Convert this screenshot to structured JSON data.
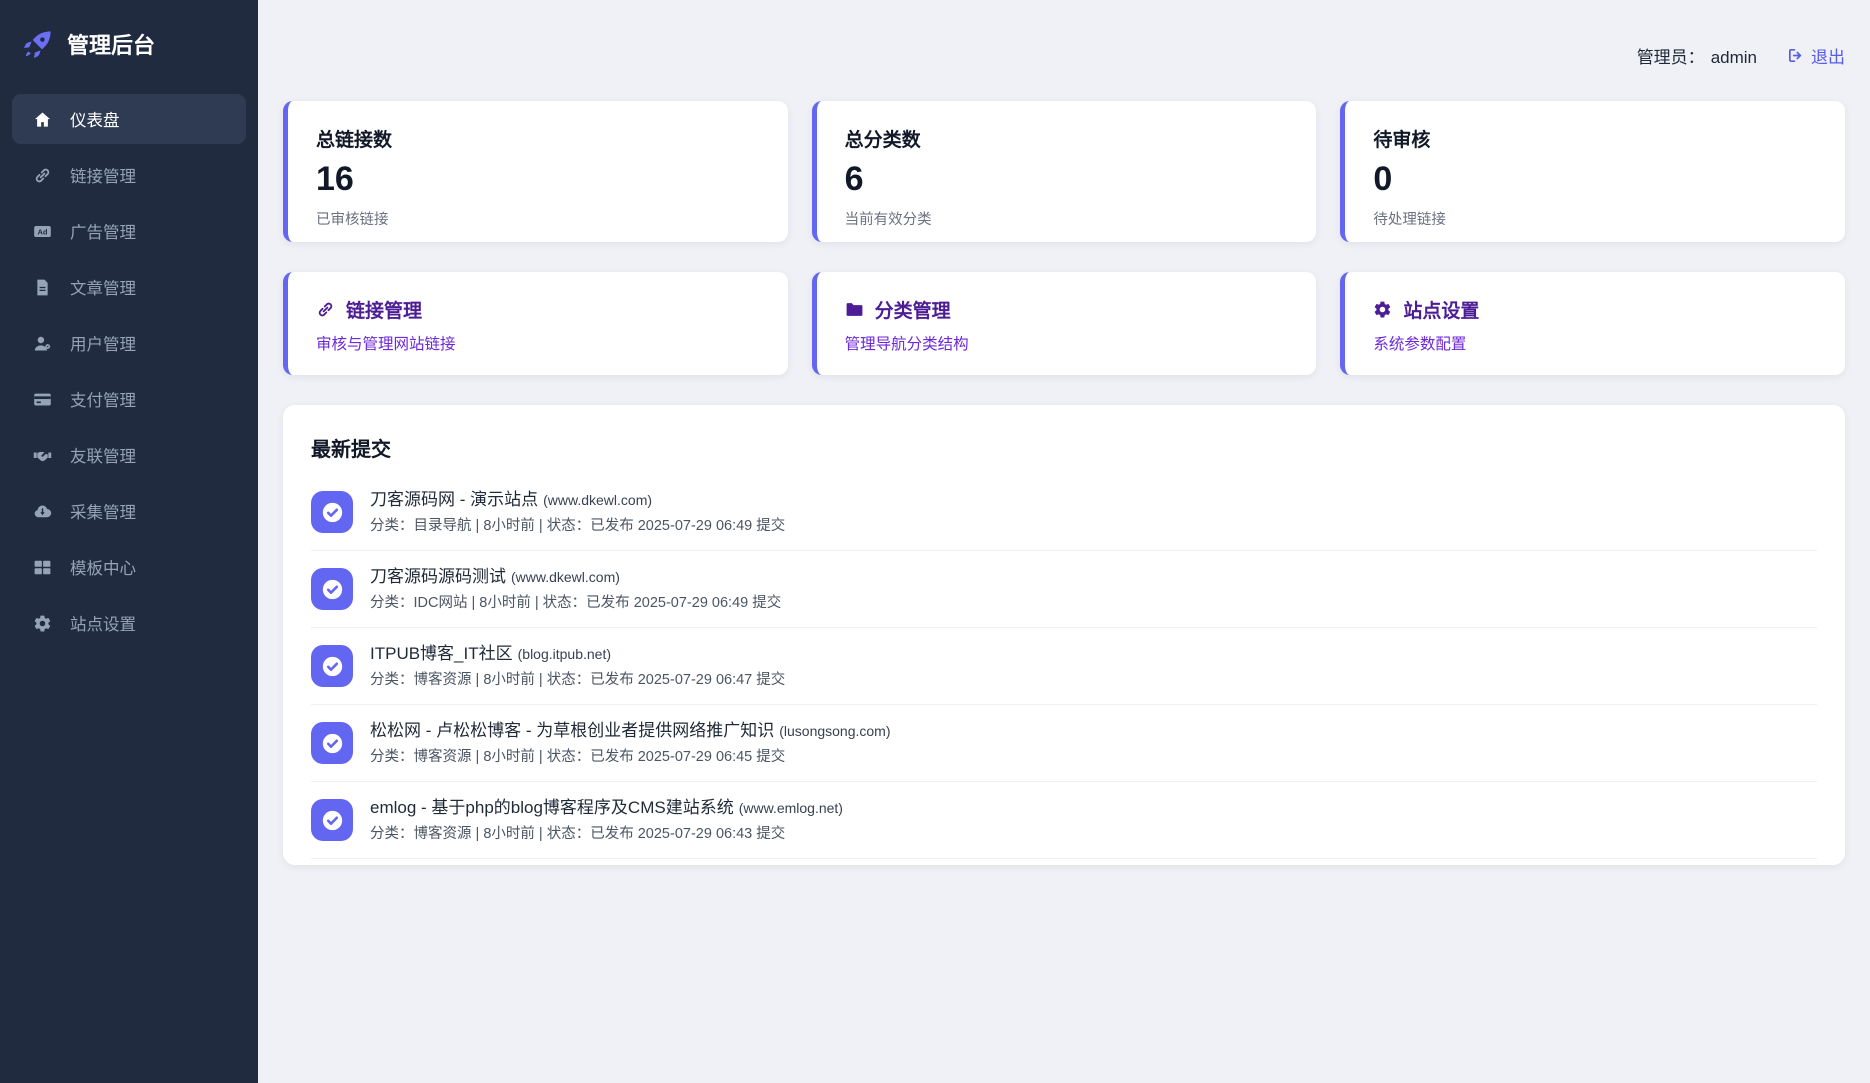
{
  "app": {
    "title": "管理后台"
  },
  "colors": {
    "accent": "#6366f1",
    "sidebar_bg": "#202b3f",
    "action_title": "#4c1d95",
    "action_subtitle": "#6d28d9"
  },
  "header": {
    "admin_label": "管理员：",
    "admin_name": "admin",
    "logout_label": "退出",
    "logout_icon": "logout-icon"
  },
  "sidebar": {
    "logo_icon": "rocket-icon",
    "items": [
      {
        "key": "dashboard",
        "icon": "home-icon",
        "label": "仪表盘",
        "active": true
      },
      {
        "key": "links",
        "icon": "link-icon",
        "label": "链接管理",
        "active": false
      },
      {
        "key": "ads",
        "icon": "ad-icon",
        "label": "广告管理",
        "active": false
      },
      {
        "key": "articles",
        "icon": "file-icon",
        "label": "文章管理",
        "active": false
      },
      {
        "key": "users",
        "icon": "user-gear-icon",
        "label": "用户管理",
        "active": false
      },
      {
        "key": "payments",
        "icon": "credit-card-icon",
        "label": "支付管理",
        "active": false
      },
      {
        "key": "friend-links",
        "icon": "handshake-icon",
        "label": "友联管理",
        "active": false
      },
      {
        "key": "collection",
        "icon": "cloud-download-icon",
        "label": "采集管理",
        "active": false
      },
      {
        "key": "templates",
        "icon": "grid-icon",
        "label": "模板中心",
        "active": false
      },
      {
        "key": "site-settings",
        "icon": "gear-icon",
        "label": "站点设置",
        "active": false
      }
    ]
  },
  "stats": [
    {
      "key": "total-links",
      "title": "总链接数",
      "value": "16",
      "subtitle": "已审核链接"
    },
    {
      "key": "total-categories",
      "title": "总分类数",
      "value": "6",
      "subtitle": "当前有效分类"
    },
    {
      "key": "pending-review",
      "title": "待审核",
      "value": "0",
      "subtitle": "待处理链接"
    }
  ],
  "actions": [
    {
      "key": "link-management",
      "icon": "link-icon",
      "title": "链接管理",
      "subtitle": "审核与管理网站链接"
    },
    {
      "key": "category-management",
      "icon": "folder-icon",
      "title": "分类管理",
      "subtitle": "管理导航分类结构"
    },
    {
      "key": "site-settings",
      "icon": "gear-icon",
      "title": "站点设置",
      "subtitle": "系统参数配置"
    }
  ],
  "recent": {
    "title": "最新提交",
    "item_icon": "check-circle-icon",
    "items": [
      {
        "title": "刀客源码网 - 演示站点",
        "domain": "(www.dkewl.com)",
        "meta": "分类：目录导航 | 8小时前 | 状态：已发布 2025-07-29 06:49 提交"
      },
      {
        "title": "刀客源码源码测试",
        "domain": "(www.dkewl.com)",
        "meta": "分类：IDC网站 | 8小时前 | 状态：已发布 2025-07-29 06:49 提交"
      },
      {
        "title": "ITPUB博客_IT社区",
        "domain": "(blog.itpub.net)",
        "meta": "分类：博客资源 | 8小时前 | 状态：已发布 2025-07-29 06:47 提交"
      },
      {
        "title": "松松网 - 卢松松博客 - 为草根创业者提供网络推广知识",
        "domain": "(lusongsong.com)",
        "meta": "分类：博客资源 | 8小时前 | 状态：已发布 2025-07-29 06:45 提交"
      },
      {
        "title": "emlog - 基于php的blog博客程序及CMS建站系统",
        "domain": "(www.emlog.net)",
        "meta": "分类：博客资源 | 8小时前 | 状态：已发布 2025-07-29 06:43 提交"
      }
    ]
  }
}
